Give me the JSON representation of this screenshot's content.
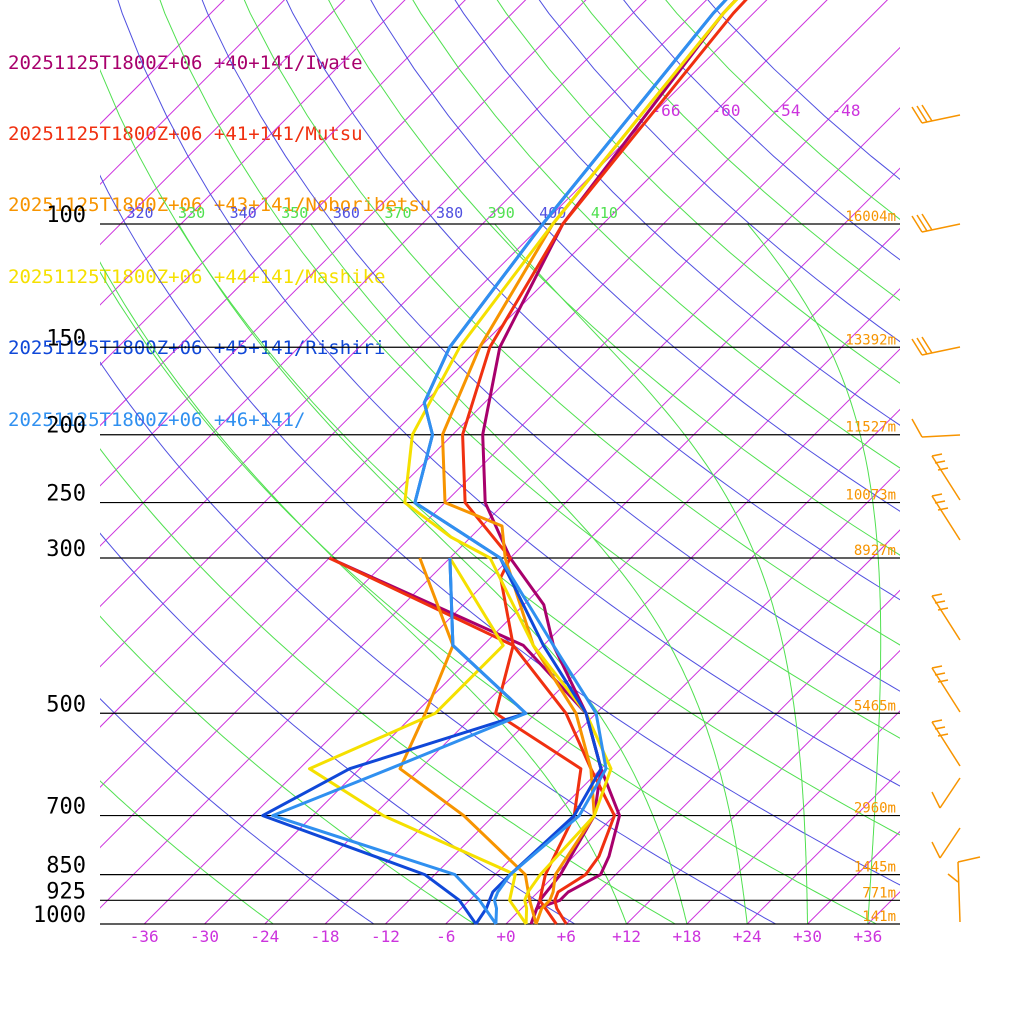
{
  "chart_data": {
    "type": "line",
    "legend": [
      {
        "text": "20251125T1800Z+06 +40+141/Iwate",
        "color": "#a8006c"
      },
      {
        "text": "20251125T1800Z+06 +41+141/Mutsu",
        "color": "#f03010"
      },
      {
        "text": "20251125T1800Z+06 +43+141/Noboribetsu",
        "color": "#f79400"
      },
      {
        "text": "20251125T1800Z+06 +44+141/Mashike",
        "color": "#f5e000"
      },
      {
        "text": "20251125T1800Z+06 +45+141/Rishiri",
        "color": "#1048d8"
      },
      {
        "text": "20251125T1800Z+06 +46+141/",
        "color": "#3090f0"
      }
    ],
    "pressure_levels": [
      {
        "p": 100,
        "label": "100",
        "height": "16004m"
      },
      {
        "p": 150,
        "label": "150",
        "height": "13392m"
      },
      {
        "p": 200,
        "label": "200",
        "height": "11527m"
      },
      {
        "p": 250,
        "label": "250",
        "height": "10073m"
      },
      {
        "p": 300,
        "label": "300",
        "height": "8927m"
      },
      {
        "p": 500,
        "label": "500",
        "height": "5465m"
      },
      {
        "p": 700,
        "label": "700",
        "height": "2960m"
      },
      {
        "p": 850,
        "label": "850",
        "height": "1445m"
      },
      {
        "p": 925,
        "label": "925",
        "height": "771m"
      },
      {
        "p": 1000,
        "label": "1000",
        "height": "141m"
      }
    ],
    "x_ticks": [
      "-36",
      "-30",
      "-24",
      "-18",
      "-12",
      "-6",
      "+0",
      "+6",
      "+12",
      "+18",
      "+24",
      "+30",
      "+36"
    ],
    "isotherm_labels_upper": [
      "-66",
      "-60",
      "-54",
      "-48"
    ],
    "theta_labels": [
      {
        "text": "320",
        "color": "#5050e0"
      },
      {
        "text": "330",
        "color": "#50e050"
      },
      {
        "text": "340",
        "color": "#5050e0"
      },
      {
        "text": "350",
        "color": "#50e050"
      },
      {
        "text": "360",
        "color": "#5050e0"
      },
      {
        "text": "370",
        "color": "#50e050"
      },
      {
        "text": "380",
        "color": "#5050e0"
      },
      {
        "text": "390",
        "color": "#50e050"
      },
      {
        "text": "400",
        "color": "#5050e0"
      },
      {
        "text": "410",
        "color": "#50e050"
      }
    ],
    "series": [
      {
        "color": "#a8006c",
        "profiles": [
          [
            [
              1000,
              2.5
            ],
            [
              950,
              1.5
            ],
            [
              925,
              3.0
            ],
            [
              900,
              3.0
            ],
            [
              850,
              4.5
            ],
            [
              800,
              3.5
            ],
            [
              700,
              0.5
            ],
            [
              600,
              -6
            ],
            [
              500,
              -13
            ],
            [
              400,
              -23
            ],
            [
              350,
              -28
            ],
            [
              300,
              -36
            ],
            [
              250,
              -44
            ],
            [
              200,
              -51
            ],
            [
              150,
              -58
            ],
            [
              100,
              -64
            ],
            [
              50,
              -69
            ],
            [
              30,
              -70
            ],
            [
              20,
              -71
            ]
          ],
          [
            [
              1000,
              2.5
            ],
            [
              925,
              1.0
            ],
            [
              850,
              0.5
            ],
            [
              700,
              -2
            ],
            [
              600,
              -6
            ],
            [
              500,
              -13
            ],
            [
              400,
              -26
            ],
            [
              300,
              -54
            ]
          ]
        ]
      },
      {
        "color": "#f03010",
        "profiles": [
          [
            [
              1000,
              6
            ],
            [
              950,
              3.5
            ],
            [
              925,
              2.5
            ],
            [
              900,
              2.0
            ],
            [
              850,
              3.0
            ],
            [
              800,
              2.5
            ],
            [
              700,
              0
            ],
            [
              600,
              -7
            ],
            [
              500,
              -15
            ],
            [
              400,
              -27
            ],
            [
              320,
              -35
            ],
            [
              300,
              -36
            ],
            [
              250,
              -46
            ],
            [
              200,
              -53
            ],
            [
              150,
              -59
            ],
            [
              100,
              -64
            ],
            [
              50,
              -68
            ],
            [
              30,
              -69
            ],
            [
              20,
              -70
            ]
          ],
          [
            [
              1000,
              5
            ],
            [
              925,
              1
            ],
            [
              850,
              -1
            ],
            [
              700,
              -4
            ],
            [
              600,
              -8
            ],
            [
              500,
              -22
            ],
            [
              400,
              -27
            ],
            [
              300,
              -54
            ]
          ]
        ]
      },
      {
        "color": "#f79400",
        "profiles": [
          [
            [
              1000,
              3
            ],
            [
              950,
              2
            ],
            [
              925,
              2.0
            ],
            [
              900,
              1.5
            ],
            [
              850,
              0
            ],
            [
              700,
              -2
            ],
            [
              600,
              -7
            ],
            [
              500,
              -14
            ],
            [
              400,
              -25
            ],
            [
              300,
              -36.5
            ],
            [
              270,
              -40
            ],
            [
              250,
              -48
            ],
            [
              200,
              -55
            ],
            [
              150,
              -60
            ],
            [
              100,
              -65
            ],
            [
              50,
              -69
            ],
            [
              30,
              -70
            ],
            [
              20,
              -70.5
            ]
          ],
          [
            [
              1000,
              3
            ],
            [
              925,
              0
            ],
            [
              850,
              -3
            ],
            [
              700,
              -15
            ],
            [
              600,
              -26
            ],
            [
              500,
              -29
            ],
            [
              400,
              -33
            ],
            [
              300,
              -45
            ]
          ]
        ]
      },
      {
        "color": "#f5e000",
        "profiles": [
          [
            [
              1000,
              2
            ],
            [
              950,
              0.5
            ],
            [
              925,
              -0.5
            ],
            [
              900,
              -1
            ],
            [
              850,
              -1.5
            ],
            [
              700,
              -2
            ],
            [
              600,
              -5
            ],
            [
              500,
              -13
            ],
            [
              400,
              -25
            ],
            [
              300,
              -38
            ],
            [
              280,
              -44
            ],
            [
              250,
              -52
            ],
            [
              200,
              -58
            ],
            [
              150,
              -62
            ],
            [
              100,
              -65
            ],
            [
              50,
              -69
            ],
            [
              30,
              -69.5
            ],
            [
              20,
              -70
            ]
          ],
          [
            [
              1000,
              2
            ],
            [
              925,
              -2
            ],
            [
              850,
              -4
            ],
            [
              700,
              -23
            ],
            [
              600,
              -35
            ],
            [
              500,
              -28
            ],
            [
              400,
              -28
            ],
            [
              300,
              -42
            ]
          ]
        ]
      },
      {
        "color": "#1048d8",
        "profiles": [
          [
            [
              1000,
              -3
            ],
            [
              950,
              -3.5
            ],
            [
              925,
              -4
            ],
            [
              900,
              -4.5
            ],
            [
              850,
              -4.5
            ],
            [
              700,
              -4
            ],
            [
              600,
              -6
            ],
            [
              500,
              -13
            ],
            [
              400,
              -24
            ],
            [
              300,
              -37
            ],
            [
              250,
              -51
            ],
            [
              200,
              -56
            ],
            [
              180,
              -60
            ],
            [
              150,
              -63
            ],
            [
              100,
              -66
            ],
            [
              50,
              -70
            ],
            [
              30,
              -71
            ],
            [
              20,
              -71
            ]
          ],
          [
            [
              1000,
              -3
            ],
            [
              925,
              -7
            ],
            [
              850,
              -13
            ],
            [
              700,
              -35
            ],
            [
              600,
              -31
            ],
            [
              500,
              -19
            ],
            [
              400,
              -33
            ],
            [
              300,
              -42
            ]
          ]
        ]
      },
      {
        "color": "#3090f0",
        "profiles": [
          [
            [
              1000,
              -1
            ],
            [
              950,
              -2.5
            ],
            [
              925,
              -3.5
            ],
            [
              900,
              -4
            ],
            [
              850,
              -4.5
            ],
            [
              700,
              -3.5
            ],
            [
              600,
              -5.5
            ],
            [
              500,
              -12
            ],
            [
              400,
              -23
            ],
            [
              300,
              -37
            ],
            [
              250,
              -51
            ],
            [
              200,
              -56
            ],
            [
              180,
              -60
            ],
            [
              150,
              -63
            ],
            [
              100,
              -66
            ],
            [
              50,
              -70
            ],
            [
              30,
              -71
            ],
            [
              20,
              -71
            ]
          ],
          [
            [
              1000,
              -1
            ],
            [
              925,
              -5
            ],
            [
              850,
              -10
            ],
            [
              700,
              -34
            ],
            [
              600,
              -27
            ],
            [
              500,
              -19
            ],
            [
              400,
              -33
            ],
            [
              300,
              -42
            ]
          ]
        ]
      }
    ]
  }
}
